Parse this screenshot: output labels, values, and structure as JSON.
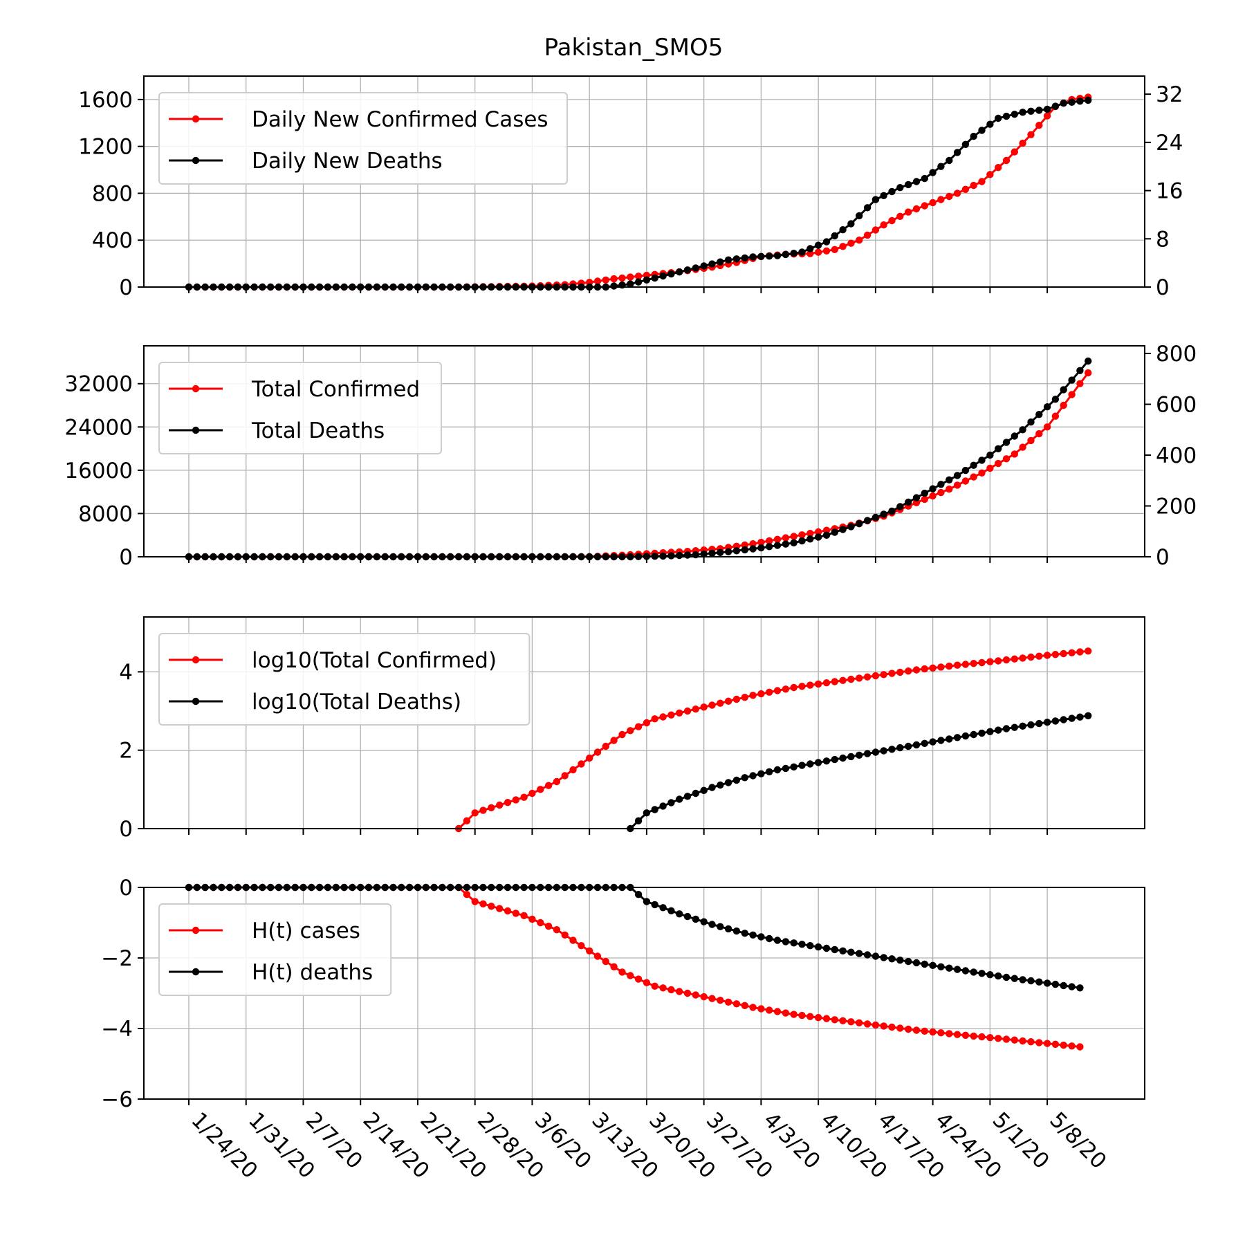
{
  "figure": {
    "title": "Pakistan_SMO5"
  },
  "colors": {
    "cases": "#ff0000",
    "deaths": "#000000",
    "grid": "#b0b0b0"
  },
  "x_axis": {
    "tick_labels": [
      "1/24/20",
      "1/31/20",
      "2/7/20",
      "2/14/20",
      "2/21/20",
      "2/28/20",
      "3/6/20",
      "3/13/20",
      "3/20/20",
      "3/27/20",
      "4/3/20",
      "4/10/20",
      "4/17/20",
      "4/24/20",
      "5/1/20",
      "5/8/20"
    ]
  },
  "chart_data": [
    {
      "type": "line",
      "title": "Pakistan_SMO5",
      "x": {
        "start": "1/24/20",
        "end": "5/13/20"
      },
      "ylim": [
        0,
        1800
      ],
      "yticks": [
        0,
        400,
        800,
        1200,
        1600
      ],
      "ylim_right": [
        0,
        35
      ],
      "yticks_right": [
        0,
        8,
        16,
        24,
        32
      ],
      "legend": "upper-left",
      "grid": true,
      "series": [
        {
          "name": "Daily New Confirmed Cases",
          "axis": "left",
          "points": [
            [
              "1/24/20",
              0
            ],
            [
              "2/26/20",
              0
            ],
            [
              "3/6/20",
              8
            ],
            [
              "3/10/20",
              20
            ],
            [
              "3/13/20",
              40
            ],
            [
              "3/16/20",
              70
            ],
            [
              "3/20/20",
              100
            ],
            [
              "3/24/20",
              130
            ],
            [
              "3/28/20",
              170
            ],
            [
              "3/31/20",
              210
            ],
            [
              "4/3/20",
              260
            ],
            [
              "4/6/20",
              280
            ],
            [
              "4/9/20",
              285
            ],
            [
              "4/12/20",
              320
            ],
            [
              "4/15/20",
              400
            ],
            [
              "4/18/20",
              530
            ],
            [
              "4/21/20",
              640
            ],
            [
              "4/24/20",
              720
            ],
            [
              "4/27/20",
              800
            ],
            [
              "4/30/20",
              900
            ],
            [
              "5/3/20",
              1080
            ],
            [
              "5/6/20",
              1300
            ],
            [
              "5/9/20",
              1540
            ],
            [
              "5/11/20",
              1600
            ],
            [
              "5/13/20",
              1620
            ]
          ]
        },
        {
          "name": "Daily New Deaths",
          "axis": "right",
          "points": [
            [
              "1/24/20",
              0
            ],
            [
              "3/15/20",
              0
            ],
            [
              "3/18/20",
              0.5
            ],
            [
              "3/21/20",
              1.5
            ],
            [
              "3/24/20",
              2.5
            ],
            [
              "3/27/20",
              3.5
            ],
            [
              "3/30/20",
              4.5
            ],
            [
              "4/2/20",
              5
            ],
            [
              "4/5/20",
              5.2
            ],
            [
              "4/8/20",
              5.8
            ],
            [
              "4/11/20",
              7.5
            ],
            [
              "4/14/20",
              10.5
            ],
            [
              "4/17/20",
              14.5
            ],
            [
              "4/20/20",
              16.5
            ],
            [
              "4/23/20",
              18
            ],
            [
              "4/26/20",
              21
            ],
            [
              "4/29/20",
              25
            ],
            [
              "5/2/20",
              28
            ],
            [
              "5/5/20",
              29
            ],
            [
              "5/8/20",
              29.5
            ],
            [
              "5/10/20",
              30.5
            ],
            [
              "5/13/20",
              31
            ]
          ]
        }
      ]
    },
    {
      "type": "line",
      "x": {
        "start": "1/24/20",
        "end": "5/13/20"
      },
      "ylim": [
        0,
        39000
      ],
      "yticks": [
        0,
        8000,
        16000,
        24000,
        32000
      ],
      "ylim_right": [
        0,
        830
      ],
      "yticks_right": [
        0,
        200,
        400,
        600,
        800
      ],
      "legend": "upper-left",
      "grid": true,
      "series": [
        {
          "name": "Total Confirmed",
          "axis": "left",
          "points": [
            [
              "1/24/20",
              0
            ],
            [
              "3/13/20",
              20
            ],
            [
              "3/17/20",
              300
            ],
            [
              "3/21/20",
              650
            ],
            [
              "3/25/20",
              1000
            ],
            [
              "3/29/20",
              1500
            ],
            [
              "4/2/20",
              2400
            ],
            [
              "4/6/20",
              3500
            ],
            [
              "4/10/20",
              4600
            ],
            [
              "4/14/20",
              5800
            ],
            [
              "4/18/20",
              7500
            ],
            [
              "4/22/20",
              10000
            ],
            [
              "4/26/20",
              12500
            ],
            [
              "4/30/20",
              15500
            ],
            [
              "5/4/20",
              19000
            ],
            [
              "5/8/20",
              24000
            ],
            [
              "5/11/20",
              30000
            ],
            [
              "5/13/20",
              34000
            ]
          ]
        },
        {
          "name": "Total Deaths",
          "axis": "right",
          "points": [
            [
              "1/24/20",
              0
            ],
            [
              "3/18/20",
              0
            ],
            [
              "3/22/20",
              3
            ],
            [
              "3/26/20",
              8
            ],
            [
              "3/30/20",
              20
            ],
            [
              "4/3/20",
              35
            ],
            [
              "4/7/20",
              55
            ],
            [
              "4/11/20",
              85
            ],
            [
              "4/15/20",
              130
            ],
            [
              "4/19/20",
              180
            ],
            [
              "4/23/20",
              250
            ],
            [
              "4/27/20",
              320
            ],
            [
              "5/1/20",
              400
            ],
            [
              "5/5/20",
              500
            ],
            [
              "5/9/20",
              620
            ],
            [
              "5/13/20",
              770
            ]
          ]
        }
      ]
    },
    {
      "type": "line",
      "x": {
        "start": "1/24/20",
        "end": "5/13/20"
      },
      "ylim": [
        0,
        5.4
      ],
      "yticks": [
        0,
        2,
        4
      ],
      "legend": "upper-left",
      "grid": true,
      "series": [
        {
          "name": "log10(Total Confirmed)",
          "points": [
            [
              "2/26/20",
              0
            ],
            [
              "2/28/20",
              0.4
            ],
            [
              "3/2/20",
              0.6
            ],
            [
              "3/5/20",
              0.8
            ],
            [
              "3/9/20",
              1.2
            ],
            [
              "3/13/20",
              1.8
            ],
            [
              "3/17/20",
              2.4
            ],
            [
              "3/21/20",
              2.8
            ],
            [
              "3/25/20",
              3.0
            ],
            [
              "3/29/20",
              3.2
            ],
            [
              "4/2/20",
              3.4
            ],
            [
              "4/7/20",
              3.6
            ],
            [
              "4/12/20",
              3.75
            ],
            [
              "4/17/20",
              3.9
            ],
            [
              "4/22/20",
              4.05
            ],
            [
              "4/27/20",
              4.17
            ],
            [
              "5/2/20",
              4.28
            ],
            [
              "5/7/20",
              4.4
            ],
            [
              "5/13/20",
              4.53
            ]
          ]
        },
        {
          "name": "log10(Total Deaths)",
          "points": [
            [
              "3/18/20",
              0
            ],
            [
              "3/20/20",
              0.4
            ],
            [
              "3/24/20",
              0.75
            ],
            [
              "3/28/20",
              1.05
            ],
            [
              "4/1/20",
              1.3
            ],
            [
              "4/5/20",
              1.5
            ],
            [
              "4/9/20",
              1.65
            ],
            [
              "4/13/20",
              1.8
            ],
            [
              "4/17/20",
              1.95
            ],
            [
              "4/21/20",
              2.1
            ],
            [
              "4/25/20",
              2.25
            ],
            [
              "4/29/20",
              2.4
            ],
            [
              "5/3/20",
              2.55
            ],
            [
              "5/7/20",
              2.68
            ],
            [
              "5/13/20",
              2.88
            ]
          ]
        }
      ]
    },
    {
      "type": "line",
      "x": {
        "start": "1/24/20",
        "end": "5/13/20"
      },
      "ylim": [
        -6,
        0
      ],
      "yticks": [
        0,
        -2,
        -4,
        -6
      ],
      "ytick_labels": [
        "0",
        "−2",
        "−4",
        "−6"
      ],
      "legend": "upper-left",
      "grid": true,
      "series": [
        {
          "name": "H(t) cases",
          "points": [
            [
              "1/24/20",
              0
            ],
            [
              "2/26/20",
              0
            ],
            [
              "2/28/20",
              -0.4
            ],
            [
              "3/2/20",
              -0.6
            ],
            [
              "3/5/20",
              -0.8
            ],
            [
              "3/9/20",
              -1.2
            ],
            [
              "3/13/20",
              -1.8
            ],
            [
              "3/17/20",
              -2.4
            ],
            [
              "3/21/20",
              -2.8
            ],
            [
              "3/25/20",
              -3.0
            ],
            [
              "3/29/20",
              -3.2
            ],
            [
              "4/2/20",
              -3.4
            ],
            [
              "4/7/20",
              -3.6
            ],
            [
              "4/12/20",
              -3.75
            ],
            [
              "4/17/20",
              -3.9
            ],
            [
              "4/22/20",
              -4.05
            ],
            [
              "4/27/20",
              -4.17
            ],
            [
              "5/2/20",
              -4.28
            ],
            [
              "5/7/20",
              -4.4
            ],
            [
              "5/12/20",
              -4.52
            ]
          ]
        },
        {
          "name": "H(t) deaths",
          "points": [
            [
              "1/24/20",
              0
            ],
            [
              "3/13/20",
              0
            ],
            [
              "3/18/20",
              0
            ],
            [
              "3/20/20",
              -0.4
            ],
            [
              "3/24/20",
              -0.75
            ],
            [
              "3/28/20",
              -1.05
            ],
            [
              "4/1/20",
              -1.3
            ],
            [
              "4/5/20",
              -1.5
            ],
            [
              "4/9/20",
              -1.65
            ],
            [
              "4/13/20",
              -1.8
            ],
            [
              "4/17/20",
              -1.95
            ],
            [
              "4/21/20",
              -2.1
            ],
            [
              "4/25/20",
              -2.25
            ],
            [
              "4/29/20",
              -2.4
            ],
            [
              "5/3/20",
              -2.55
            ],
            [
              "5/7/20",
              -2.68
            ],
            [
              "5/12/20",
              -2.85
            ]
          ]
        }
      ]
    }
  ]
}
